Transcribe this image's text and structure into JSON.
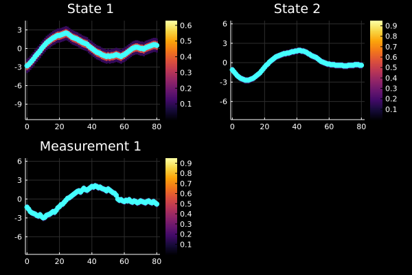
{
  "figure": {
    "background": "#000000",
    "foreground": "#ffffff",
    "marker_color": "#44ffff",
    "grid_color": "#2e2e2e"
  },
  "chart_data": [
    {
      "type": "heatmap",
      "title": "State 1",
      "overlay": "scatter",
      "xlim": [
        -1,
        82
      ],
      "ylim": [
        -11.5,
        4.5
      ],
      "xticks": [
        0,
        20,
        40,
        60,
        80
      ],
      "xtick_labels": [
        "0",
        "20",
        "40",
        "60",
        "80"
      ],
      "yticks": [
        3,
        0,
        -3,
        -6,
        -9
      ],
      "ytick_labels": [
        "3",
        "0",
        "-3",
        "-6",
        "-9"
      ],
      "grid": true,
      "colorbar": {
        "range": [
          0,
          0.63
        ],
        "ticks": [
          0.1,
          0.2,
          0.3,
          0.4,
          0.5,
          0.6
        ],
        "tick_labels": [
          "0.1",
          "0.2",
          "0.3",
          "0.4",
          "0.5",
          "0.6"
        ],
        "colormap": "inferno"
      },
      "scatter": {
        "x": [
          0,
          1,
          2,
          3,
          4,
          5,
          6,
          7,
          8,
          9,
          10,
          11,
          12,
          13,
          14,
          15,
          16,
          17,
          18,
          19,
          20,
          21,
          22,
          23,
          24,
          25,
          26,
          27,
          28,
          29,
          30,
          31,
          32,
          33,
          34,
          35,
          36,
          37,
          38,
          39,
          40,
          41,
          42,
          43,
          44,
          45,
          46,
          47,
          48,
          49,
          50,
          51,
          52,
          53,
          54,
          55,
          56,
          57,
          58,
          59,
          60,
          61,
          62,
          63,
          64,
          65,
          66,
          67,
          68,
          69,
          70,
          71,
          72,
          73,
          74,
          75,
          76,
          77,
          78,
          79,
          80
        ],
        "y": [
          -2.8,
          -2.6,
          -2.3,
          -2.0,
          -1.7,
          -1.3,
          -1.0,
          -0.7,
          -0.4,
          0.0,
          0.3,
          0.6,
          0.9,
          1.1,
          1.3,
          1.5,
          1.7,
          1.8,
          2.0,
          2.1,
          2.1,
          2.2,
          2.3,
          2.4,
          2.5,
          2.4,
          2.2,
          2.0,
          1.8,
          1.7,
          1.6,
          1.5,
          1.3,
          1.2,
          1.0,
          0.9,
          0.8,
          0.7,
          0.4,
          0.2,
          0.0,
          -0.2,
          -0.4,
          -0.6,
          -0.7,
          -0.8,
          -1.0,
          -1.1,
          -1.2,
          -1.3,
          -1.2,
          -1.3,
          -1.2,
          -1.2,
          -1.1,
          -1.0,
          -1.1,
          -1.2,
          -1.3,
          -1.1,
          -1.0,
          -0.8,
          -0.6,
          -0.4,
          -0.2,
          0.0,
          0.1,
          0.2,
          0.2,
          0.1,
          0.0,
          0.0,
          -0.1,
          0.1,
          0.2,
          0.3,
          0.4,
          0.5,
          0.6,
          0.6,
          0.5
        ]
      },
      "heat_sigma": 0.5
    },
    {
      "type": "heatmap",
      "title": "State 2",
      "overlay": "scatter",
      "xlim": [
        -1,
        82
      ],
      "ylim": [
        -8.8,
        6.5
      ],
      "xticks": [
        0,
        20,
        40,
        60,
        80
      ],
      "xtick_labels": [
        "0",
        "20",
        "40",
        "60",
        "80"
      ],
      "yticks": [
        6,
        3,
        0,
        -3,
        -6
      ],
      "ytick_labels": [
        "6",
        "3",
        "0",
        "-3",
        "-6"
      ],
      "grid": true,
      "colorbar": {
        "range": [
          0,
          0.95
        ],
        "ticks": [
          0.1,
          0.2,
          0.3,
          0.4,
          0.5,
          0.6,
          0.7,
          0.8,
          0.9
        ],
        "tick_labels": [
          "0.1",
          "0.2",
          "0.3",
          "0.4",
          "0.5",
          "0.6",
          "0.7",
          "0.8",
          "0.9"
        ],
        "colormap": "inferno"
      },
      "scatter": {
        "x": [
          0,
          1,
          2,
          3,
          4,
          5,
          6,
          7,
          8,
          9,
          10,
          11,
          12,
          13,
          14,
          15,
          16,
          17,
          18,
          19,
          20,
          21,
          22,
          23,
          24,
          25,
          26,
          27,
          28,
          29,
          30,
          31,
          32,
          33,
          34,
          35,
          36,
          37,
          38,
          39,
          40,
          41,
          42,
          43,
          44,
          45,
          46,
          47,
          48,
          49,
          50,
          51,
          52,
          53,
          54,
          55,
          56,
          57,
          58,
          59,
          60,
          61,
          62,
          63,
          64,
          65,
          66,
          67,
          68,
          69,
          70,
          71,
          72,
          73,
          74,
          75,
          76,
          77,
          78,
          79,
          80
        ],
        "y": [
          -1.1,
          -1.4,
          -1.7,
          -2.0,
          -2.2,
          -2.4,
          -2.5,
          -2.6,
          -2.7,
          -2.7,
          -2.7,
          -2.6,
          -2.5,
          -2.4,
          -2.2,
          -2.0,
          -1.8,
          -1.6,
          -1.3,
          -1.0,
          -0.7,
          -0.4,
          -0.2,
          0.1,
          0.3,
          0.5,
          0.7,
          0.9,
          1.0,
          1.1,
          1.2,
          1.3,
          1.4,
          1.4,
          1.5,
          1.5,
          1.6,
          1.7,
          1.7,
          1.8,
          1.8,
          1.9,
          1.9,
          1.8,
          1.8,
          1.7,
          1.6,
          1.4,
          1.3,
          1.1,
          1.0,
          0.9,
          0.8,
          0.6,
          0.4,
          0.2,
          0.1,
          0.0,
          -0.1,
          -0.2,
          -0.2,
          -0.3,
          -0.3,
          -0.3,
          -0.4,
          -0.4,
          -0.4,
          -0.4,
          -0.4,
          -0.5,
          -0.5,
          -0.5,
          -0.4,
          -0.4,
          -0.4,
          -0.4,
          -0.3,
          -0.3,
          -0.3,
          -0.4,
          -0.4
        ]
      },
      "heat_sigma": 0.22
    },
    {
      "type": "heatmap",
      "title": "Measurement 1",
      "overlay": "scatter",
      "xlim": [
        -1,
        82
      ],
      "ylim": [
        -8.8,
        6.5
      ],
      "xticks": [
        0,
        20,
        40,
        60,
        80
      ],
      "xtick_labels": [
        "0",
        "20",
        "40",
        "60",
        "80"
      ],
      "yticks": [
        6,
        3,
        0,
        -3,
        -6
      ],
      "ytick_labels": [
        "6",
        "3",
        "0",
        "-3",
        "-6"
      ],
      "grid": true,
      "colorbar": {
        "range": [
          0,
          0.95
        ],
        "ticks": [
          0.1,
          0.2,
          0.3,
          0.4,
          0.5,
          0.6,
          0.7,
          0.8,
          0.9
        ],
        "tick_labels": [
          "0.1",
          "0.2",
          "0.3",
          "0.4",
          "0.5",
          "0.6",
          "0.7",
          "0.8",
          "0.9"
        ],
        "colormap": "inferno"
      },
      "scatter": {
        "x": [
          0,
          1,
          2,
          3,
          4,
          5,
          6,
          7,
          8,
          9,
          10,
          11,
          12,
          13,
          14,
          15,
          16,
          17,
          18,
          19,
          20,
          21,
          22,
          23,
          24,
          25,
          26,
          27,
          28,
          29,
          30,
          31,
          32,
          33,
          34,
          35,
          36,
          37,
          38,
          39,
          40,
          41,
          42,
          43,
          44,
          45,
          46,
          47,
          48,
          49,
          50,
          51,
          52,
          53,
          54,
          55,
          56,
          57,
          58,
          59,
          60,
          61,
          62,
          63,
          64,
          65,
          66,
          67,
          68,
          69,
          70,
          71,
          72,
          73,
          74,
          75,
          76,
          77,
          78,
          79,
          80
        ],
        "y": [
          -1.3,
          -1.6,
          -2.0,
          -2.2,
          -2.3,
          -2.4,
          -2.6,
          -2.7,
          -2.5,
          -2.8,
          -3.0,
          -2.9,
          -2.6,
          -2.5,
          -2.4,
          -2.2,
          -2.0,
          -2.1,
          -1.8,
          -1.4,
          -1.2,
          -0.9,
          -0.8,
          -0.5,
          -0.2,
          0.1,
          0.2,
          0.4,
          0.6,
          0.8,
          1.0,
          1.2,
          1.3,
          1.1,
          1.4,
          1.7,
          1.5,
          1.4,
          1.6,
          1.8,
          2.0,
          1.9,
          2.1,
          2.0,
          1.8,
          1.9,
          1.7,
          1.6,
          1.5,
          1.3,
          1.6,
          1.4,
          1.2,
          1.0,
          0.9,
          0.6,
          0.0,
          -0.2,
          -0.1,
          -0.3,
          -0.4,
          -0.2,
          -0.3,
          -0.1,
          -0.4,
          -0.5,
          -0.3,
          -0.4,
          -0.6,
          -0.5,
          -0.3,
          -0.4,
          -0.5,
          -0.6,
          -0.4,
          -0.3,
          -0.5,
          -0.6,
          -0.4,
          -0.6,
          -0.8
        ]
      },
      "heat_sigma": 0.22
    }
  ]
}
